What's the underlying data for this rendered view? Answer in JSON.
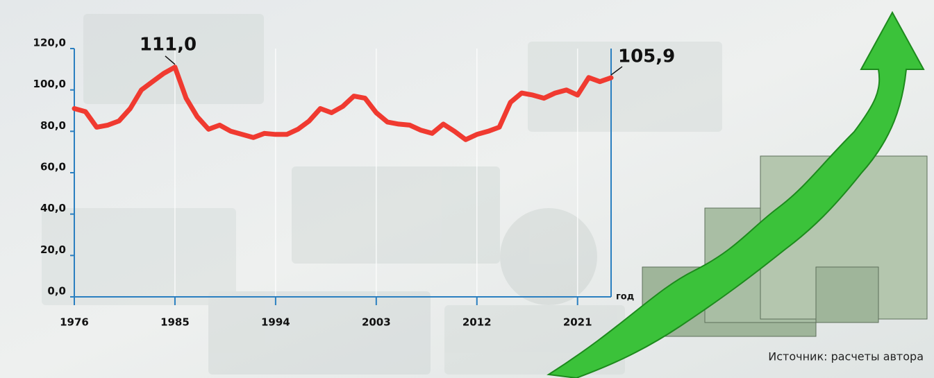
{
  "chart_data": {
    "type": "line",
    "x": [
      1976,
      1977,
      1978,
      1979,
      1980,
      1981,
      1982,
      1983,
      1984,
      1985,
      1986,
      1987,
      1988,
      1989,
      1990,
      1991,
      1992,
      1993,
      1994,
      1995,
      1996,
      1997,
      1998,
      1999,
      2000,
      2001,
      2002,
      2003,
      2004,
      2005,
      2006,
      2007,
      2008,
      2009,
      2010,
      2011,
      2012,
      2013,
      2014,
      2015,
      2016,
      2017,
      2018,
      2019,
      2020,
      2021,
      2022,
      2023,
      2024
    ],
    "values": [
      91,
      89.5,
      82,
      83,
      85,
      91,
      100,
      104,
      108,
      111.0,
      96,
      87,
      81,
      83,
      80,
      78.5,
      77,
      79,
      78.5,
      78.5,
      81,
      85,
      91,
      89,
      92,
      97,
      96,
      89,
      84.5,
      83.5,
      83,
      80.5,
      79,
      83.5,
      80,
      76,
      78.5,
      80,
      82,
      94,
      98.5,
      97.5,
      96,
      98.5,
      100,
      97.5,
      106,
      104,
      105.9
    ],
    "value_labels": [
      null,
      null,
      null,
      null,
      null,
      null,
      null,
      null,
      null,
      "111,0",
      null,
      null,
      null,
      null,
      null,
      null,
      null,
      null,
      null,
      null,
      null,
      null,
      null,
      null,
      null,
      null,
      null,
      null,
      null,
      null,
      null,
      null,
      null,
      null,
      null,
      null,
      null,
      null,
      null,
      null,
      null,
      null,
      null,
      null,
      null,
      null,
      null,
      null,
      "105,9"
    ],
    "color": "#f03a30",
    "xlim": [
      1976,
      2024
    ],
    "xticks": [
      1976,
      1985,
      1994,
      2003,
      2012,
      2021
    ],
    "ylim": [
      0,
      120
    ],
    "yticks": [
      {
        "value": 0,
        "label": "0,0"
      },
      {
        "value": 20,
        "label": "20,0"
      },
      {
        "value": 40,
        "label": "40,0"
      },
      {
        "value": 60,
        "label": "60,0"
      },
      {
        "value": 80,
        "label": "80,0"
      },
      {
        "value": 100,
        "label": "100,0"
      },
      {
        "value": 120,
        "label": "120,0"
      }
    ],
    "x_label": "год",
    "grid": true,
    "source": "Источник: расчеты автора"
  }
}
